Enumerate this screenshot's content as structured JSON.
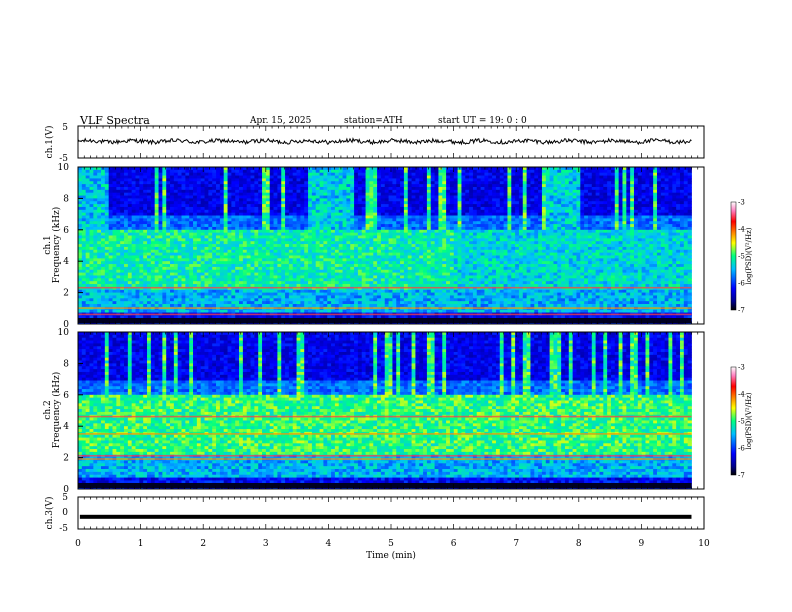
{
  "header": {
    "title": "VLF  Spectra",
    "date": "Apr. 15, 2025",
    "station": "station=ATH",
    "start": "start  UT  =    19: 0   : 0"
  },
  "chart_data": [
    {
      "type": "line",
      "name": "ch1-waveform",
      "ylabel": "ch.1(V)",
      "ylim": [
        -5,
        5
      ],
      "yticks": [
        "5",
        "-5"
      ],
      "x_range_min": [
        0,
        9.8
      ],
      "approx_level_V": 0.2,
      "approx_amplitude_V": 0.8
    },
    {
      "type": "heatmap",
      "name": "ch1-spectrogram",
      "ylabel": "Frequency (kHz)",
      "channel_label": "ch.1",
      "ylim": [
        0,
        10
      ],
      "yticks": [
        "0",
        "2",
        "4",
        "6",
        "8",
        "10"
      ],
      "colorbar": {
        "label": "log(PSD)(V²/Hz)",
        "range": [
          -7,
          -3
        ],
        "ticks": [
          "-3",
          "-4",
          "-5",
          "-6",
          "-7"
        ]
      },
      "bands_kHz": [
        0.3,
        0.6,
        1.0,
        2.3
      ],
      "note": "broadband activity strongest below ~6 kHz; dark sferic-free gaps above 6 kHz"
    },
    {
      "type": "heatmap",
      "name": "ch2-spectrogram",
      "ylabel": "Frequency (kHz)",
      "channel_label": "ch.2",
      "ylim": [
        0,
        10
      ],
      "yticks": [
        "0",
        "2",
        "4",
        "6",
        "8",
        "10"
      ],
      "colorbar": {
        "label": "log(PSD)(V²/Hz)",
        "range": [
          -7,
          -3
        ],
        "ticks": [
          "-3",
          "-4",
          "-5",
          "-6",
          "-7"
        ]
      },
      "bands_kHz": [
        1.9,
        2.1,
        3.5,
        4.6
      ]
    },
    {
      "type": "line",
      "name": "ch3-waveform",
      "ylabel": "ch.3(V)",
      "ylim": [
        -5,
        5
      ],
      "yticks": [
        "5",
        "0",
        "-5"
      ],
      "approx_level_V": -1.2
    }
  ],
  "xaxis": {
    "label": "Time  (min)",
    "range": [
      0,
      10
    ],
    "ticks": [
      "0",
      "1",
      "2",
      "3",
      "4",
      "5",
      "6",
      "7",
      "8",
      "9",
      "10"
    ]
  },
  "colors": {
    "background": "#ffffff",
    "colormap": [
      "#000000",
      "#00008b",
      "#0000ff",
      "#00bfff",
      "#00ff80",
      "#ffff00",
      "#ff8000",
      "#ff0000",
      "#ff80c0",
      "#ffffff"
    ]
  }
}
